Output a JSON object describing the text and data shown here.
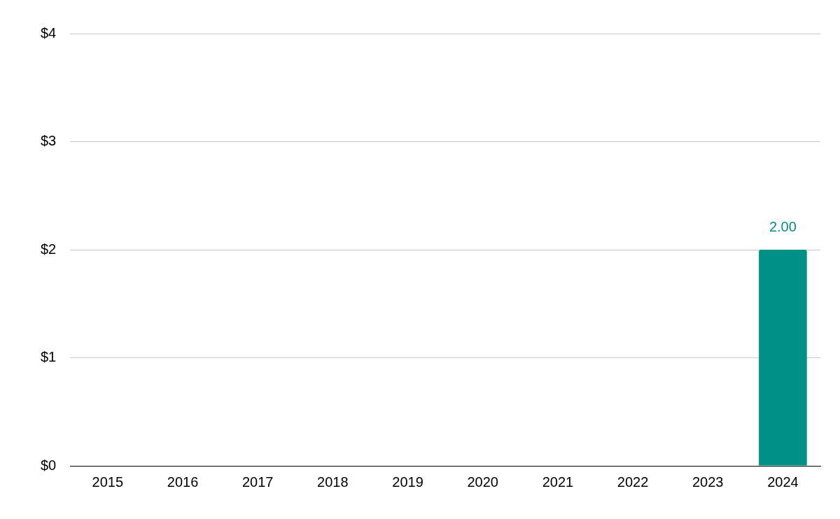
{
  "chart_data": {
    "type": "bar",
    "categories": [
      "2015",
      "2016",
      "2017",
      "2018",
      "2019",
      "2020",
      "2021",
      "2022",
      "2023",
      "2024"
    ],
    "values": [
      null,
      null,
      null,
      null,
      null,
      null,
      null,
      null,
      null,
      2
    ],
    "value_labels": [
      null,
      null,
      null,
      null,
      null,
      null,
      null,
      null,
      null,
      "2.00"
    ],
    "color": "#009088",
    "ylim": [
      0,
      4
    ],
    "yticks": [
      {
        "value": 0,
        "label": "$0"
      },
      {
        "value": 1,
        "label": "$1"
      },
      {
        "value": 2,
        "label": "$2"
      },
      {
        "value": 3,
        "label": "$3"
      },
      {
        "value": 4,
        "label": "$4"
      }
    ],
    "grid": "y",
    "legend": false
  }
}
